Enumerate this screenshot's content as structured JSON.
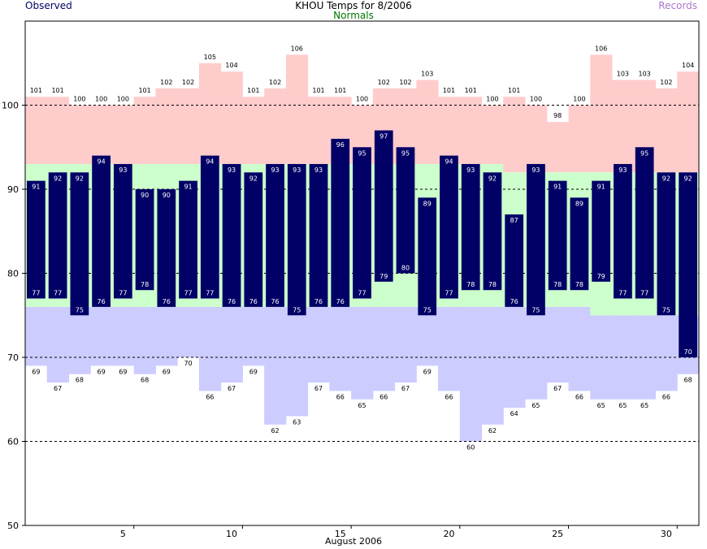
{
  "header": {
    "title": "KHOU Temps for 8/2006",
    "legend_observed": "Observed",
    "legend_normals": "Normals",
    "legend_records": "Records"
  },
  "colors": {
    "observed": "#000066",
    "normals": "#ccffcc",
    "record_high": "#ffcccc",
    "record_low": "#ccccff",
    "observed_label": "#000066",
    "normals_label": "#007700",
    "records_label": "#aa77cc"
  },
  "chart_data": {
    "type": "bar",
    "title": "KHOU Temps for 8/2006",
    "xlabel": "August 2006",
    "ylabel": "",
    "ylim": [
      50,
      110
    ],
    "yticks": [
      50,
      60,
      70,
      80,
      90,
      100
    ],
    "gridlines": [
      60,
      70,
      80,
      90,
      100
    ],
    "xticks": [
      5,
      10,
      15,
      20,
      25,
      30
    ],
    "days": [
      1,
      2,
      3,
      4,
      5,
      6,
      7,
      8,
      9,
      10,
      11,
      12,
      13,
      14,
      15,
      16,
      17,
      18,
      19,
      20,
      21,
      22,
      23,
      24,
      25,
      26,
      27,
      28,
      29,
      30,
      31
    ],
    "series": [
      {
        "name": "Observed",
        "high": [
          91,
          92,
          92,
          94,
          93,
          90,
          90,
          91,
          94,
          93,
          92,
          93,
          93,
          93,
          96,
          95,
          97,
          95,
          89,
          94,
          93,
          92,
          87,
          93,
          91,
          89,
          91,
          93,
          95,
          92,
          92
        ],
        "low": [
          77,
          77,
          75,
          76,
          77,
          78,
          76,
          77,
          77,
          76,
          76,
          76,
          75,
          76,
          76,
          77,
          79,
          80,
          75,
          77,
          78,
          78,
          76,
          75,
          78,
          78,
          79,
          77,
          77,
          75,
          70
        ]
      },
      {
        "name": "Normals",
        "high": [
          93,
          93,
          93,
          93,
          93,
          93,
          93,
          93,
          93,
          93,
          93,
          93,
          93,
          93,
          93,
          93,
          93,
          93,
          93,
          93,
          93,
          93,
          92,
          92,
          92,
          92,
          92,
          92,
          92,
          92,
          92
        ],
        "low": [
          76,
          76,
          76,
          76,
          76,
          76,
          76,
          76,
          76,
          76,
          76,
          76,
          76,
          76,
          76,
          76,
          76,
          76,
          76,
          76,
          76,
          76,
          76,
          76,
          76,
          76,
          75,
          75,
          75,
          75,
          75
        ]
      },
      {
        "name": "Records",
        "high": [
          101,
          101,
          100,
          100,
          100,
          101,
          102,
          102,
          105,
          104,
          101,
          102,
          106,
          101,
          101,
          100,
          102,
          102,
          103,
          101,
          101,
          100,
          101,
          100,
          98,
          100,
          106,
          103,
          103,
          102,
          104
        ],
        "low": [
          69,
          67,
          68,
          69,
          69,
          68,
          69,
          70,
          66,
          67,
          69,
          62,
          63,
          67,
          66,
          65,
          66,
          67,
          69,
          66,
          60,
          62,
          64,
          65,
          67,
          66,
          65,
          65,
          65,
          66,
          68
        ]
      }
    ]
  }
}
